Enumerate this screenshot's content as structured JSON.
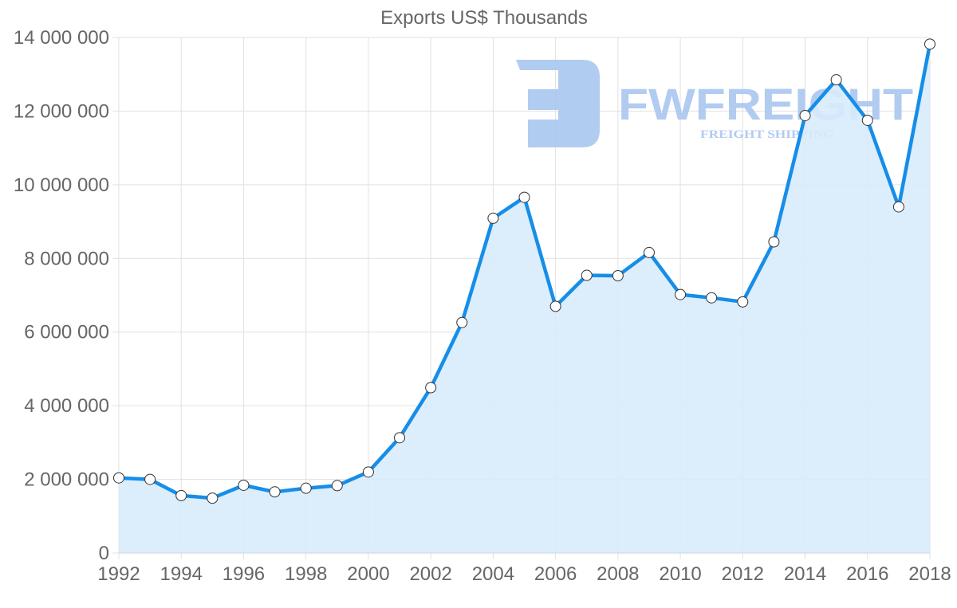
{
  "chart_data": {
    "type": "area",
    "title": "Exports US$ Thousands",
    "xlabel": "",
    "ylabel": "",
    "x": [
      1992,
      1993,
      1994,
      1995,
      1996,
      1997,
      1998,
      1999,
      2000,
      2001,
      2002,
      2003,
      2004,
      2005,
      2006,
      2007,
      2008,
      2009,
      2010,
      2011,
      2012,
      2013,
      2014,
      2015,
      2016,
      2017,
      2018
    ],
    "series": [
      {
        "name": "Exports",
        "values": [
          2040000,
          2000000,
          1560000,
          1490000,
          1840000,
          1660000,
          1760000,
          1830000,
          2200000,
          3130000,
          4490000,
          6260000,
          9090000,
          9660000,
          6700000,
          7540000,
          7530000,
          8160000,
          7020000,
          6930000,
          6820000,
          8450000,
          11880000,
          12850000,
          11750000,
          9400000,
          13820000
        ]
      }
    ],
    "x_tick_labels": [
      "1992",
      "1994",
      "1996",
      "1998",
      "2000",
      "2002",
      "2004",
      "2006",
      "2008",
      "2010",
      "2012",
      "2014",
      "2016",
      "2018"
    ],
    "y_tick_labels": [
      "0",
      "2 000 000",
      "4 000 000",
      "6 000 000",
      "8 000 000",
      "10 000 000",
      "12 000 000",
      "14 000 000"
    ],
    "y_ticks": [
      0,
      2000000,
      4000000,
      6000000,
      8000000,
      10000000,
      12000000,
      14000000
    ],
    "ylim": [
      0,
      14000000
    ],
    "xlim": [
      1992,
      2018
    ],
    "grid": true,
    "legend": null,
    "colors": {
      "line": "#168ee8",
      "fill": "#d8ebfc",
      "point_fill": "#ffffff",
      "point_stroke": "#333333",
      "grid": "#e1e1e1",
      "text": "#666666"
    }
  },
  "watermark": {
    "brand": "FWFREIGHT",
    "tagline": "FREIGHT SHIPPING",
    "color": "#a9c6f0"
  }
}
